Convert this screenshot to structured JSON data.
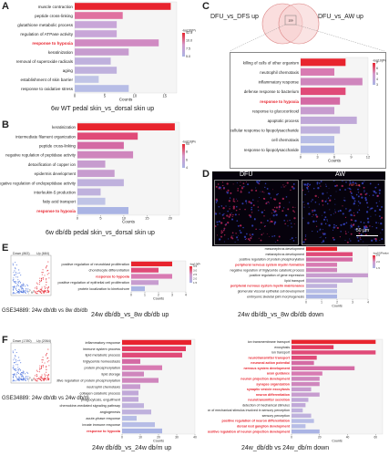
{
  "panels": {
    "A": {
      "letter": "A",
      "caption": "6w WT pedal skin_vs_dorsal skin up",
      "xlabel": "Counts",
      "legend_title": "-log10(Pvalue)",
      "legend_ticks": [
        "12.5",
        "10.0",
        "7.5",
        "5.0"
      ],
      "terms": [
        "muscle contraction",
        "peptide cross-linking",
        "glutathione metabolic process",
        "regulation of ATPase activity",
        "response to hypoxia",
        "keratinization",
        "removal of superoxide radicals",
        "aging",
        "establishment of skin barrier",
        "response to oxidative stress"
      ],
      "highlight": [
        4
      ],
      "values": [
        16,
        8,
        7,
        7,
        14,
        9,
        6,
        7,
        4,
        9
      ],
      "colors": [
        "#e8242e",
        "#e070a0",
        "#c8a6d8",
        "#c8a6d8",
        "#d08ac2",
        "#c79ccf",
        "#bfb1dd",
        "#bfb1dd",
        "#c0c4e6",
        "#b7bde6"
      ],
      "ticks": [
        "0",
        "5",
        "10",
        "15"
      ],
      "xmax": 17
    },
    "B": {
      "letter": "B",
      "caption": "6w db/db pedal skin_vs_dorsal skin up",
      "xlabel": "Counts",
      "legend_title": "-log10(Pvalue)",
      "legend_ticks": [
        "10",
        "8",
        "6",
        "4"
      ],
      "terms": [
        "keratinization",
        "intermediate filament organization",
        "peptide cross-linking",
        "negative regulation of peptidase activity",
        "detoxification of copper ion",
        "epidermis development",
        "negative regulation of endopeptidase activity",
        "interleukin-5 production",
        "fatty acid transport",
        "response to hypoxia"
      ],
      "highlight": [
        9
      ],
      "values": [
        21,
        13,
        10,
        12,
        6,
        8,
        10,
        5,
        6,
        11
      ],
      "colors": [
        "#e8242e",
        "#e04a78",
        "#d46aa4",
        "#cf86bd",
        "#c79ccf",
        "#c79ccf",
        "#bfb1dd",
        "#bfb1dd",
        "#c0c4e6",
        "#aab4e4"
      ],
      "ticks": [
        "0",
        "5",
        "10",
        "15",
        "20"
      ],
      "xmax": 22
    },
    "C": {
      "letter": "C",
      "venn_left": "DFU_vs_DFS up",
      "venn_right": "DFU_vs_AW up",
      "venn_center": "159",
      "xlabel": "Counts",
      "legend_title": "-log10(Pvalue)",
      "legend_ticks": [
        "7",
        "6",
        "5",
        "4",
        "3"
      ],
      "terms": [
        "killing of cells of other organism",
        "neutrophil chemotaxis",
        "inflammatory response",
        "defense response to bacterium",
        "response to hypoxia",
        "response to glucocorticoid",
        "apoptotic process",
        "cellular response to lipopolysaccharide",
        "cell chemotaxis",
        "response to lipopolysaccharide"
      ],
      "highlight": [
        4
      ],
      "values": [
        8,
        6,
        11,
        8,
        7,
        6,
        10,
        7,
        6,
        6
      ],
      "colors": [
        "#e8242e",
        "#d87ab2",
        "#cf86bd",
        "#e04a78",
        "#d46aa4",
        "#c79ccf",
        "#c0a8d8",
        "#bfb1dd",
        "#b7bde6",
        "#aab4e4"
      ],
      "ticks": [
        "0",
        "3",
        "6",
        "9",
        "12"
      ],
      "xmax": 12
    },
    "D": {
      "letter": "D",
      "label_left": "DFU",
      "label_right": "AW",
      "scale": "50 μm",
      "channel": "HIF-1α"
    },
    "E": {
      "letter": "E",
      "gse": "GSE34889: 24w db/db vs 8w db/db",
      "volcano_down": "Down (863)",
      "volcano_up": "Up (684)",
      "caption_up": "24w db/db_vs_8w db/db up",
      "caption_down": "24w db/db_vs_8w db/db down",
      "xlabel": "Counts",
      "legend_title": "-log10(Pvalue)",
      "up_legend_ticks": [
        "3.5",
        "3.0",
        "2.5",
        "2.0",
        "1.5"
      ],
      "up_terms": [
        "positive regulation of neuroblast proliferation",
        "chondrocyte differentiation",
        "response to hypoxia",
        "positive regulation of epithelial cell proliferation",
        "protein localization to kinetochore"
      ],
      "up_highlight": [
        2
      ],
      "up_values": [
        3,
        2,
        3,
        2,
        1
      ],
      "up_colors": [
        "#e8242e",
        "#e04a78",
        "#d87ab2",
        "#c79ccf",
        "#aab4e4"
      ],
      "up_ticks": [
        "0",
        "1",
        "2",
        "3",
        "4"
      ],
      "up_xmax": 4,
      "down_legend_ticks": [
        "2.5",
        "2.0",
        "1.5"
      ],
      "down_terms": [
        "mesonephros development",
        "metanephros development",
        "positive regulation of protein phosphorylation",
        "peripheral nervous system myelin formation",
        "negative regulation of triglyceride catabolic process",
        "positive regulation of gene expression",
        "lipid transport",
        "peripheral nervous system myelin maintenance",
        "glomerular visceral epithelial cell development",
        "embryonic skeletal joint morphogenesis"
      ],
      "down_highlight": [
        3,
        7
      ],
      "down_values": [
        2,
        3,
        3,
        2,
        2,
        4,
        3,
        2,
        2,
        2
      ],
      "down_colors": [
        "#e8242e",
        "#e04a78",
        "#d46aa4",
        "#d87ab2",
        "#cf86bd",
        "#c79ccf",
        "#c0a8d8",
        "#bfb1dd",
        "#b7bde6",
        "#aab4e4"
      ],
      "down_ticks": [
        "0",
        "1",
        "2",
        "3",
        "4"
      ],
      "down_xmax": 4
    },
    "F": {
      "letter": "F",
      "gse": "GSE34889: 24w db/db vs 24w db/m",
      "volcano_down": "Down (1780)",
      "volcano_up": "Up (2064)",
      "caption_up": "24w db/db_vs_24w db/m up",
      "caption_down": "24w_db/db vs 24w_db/m down",
      "xlabel": "Counts",
      "legend_title": "-log10(Pvalue)",
      "up_terms": [
        "inflammatory response",
        "immune system process",
        "lipid metabolic process",
        "triglyceride homeostasis",
        "protein phosphorylation",
        "lipid storage",
        "positive regulation of protein phosphorylation",
        "neutrophil chemotaxis",
        "collagen catabolic process",
        "phagocytosis, engulfment",
        "chemokine-mediated signaling pathway",
        "angiogenesis",
        "acute-phase response",
        "innate immune response",
        "response to hypoxia"
      ],
      "up_highlight": [
        14
      ],
      "up_values": [
        38,
        35,
        33,
        10,
        22,
        12,
        20,
        10,
        9,
        9,
        12,
        16,
        8,
        18,
        22
      ],
      "up_colors": [
        "#e8242e",
        "#e33a5e",
        "#e04a78",
        "#d46aa4",
        "#d87ab2",
        "#cf86bd",
        "#cf86bd",
        "#c79ccf",
        "#c0a8d8",
        "#c0a8d8",
        "#bfb1dd",
        "#bfb1dd",
        "#b7bde6",
        "#b7bde6",
        "#aab4e4"
      ],
      "up_ticks": [
        "0",
        "10",
        "20",
        "30",
        "40"
      ],
      "up_xmax": 40,
      "down_terms": [
        "ion transmembrane transport",
        "exocytosis",
        "ion transport",
        "neurotransmitter transport",
        "neuronal action potential",
        "nervous system development",
        "axon guidance",
        "neuron projection development",
        "synapse organization",
        "synaptic vesicle exocytosis",
        "neuron differentiation",
        "neurotransmitter secretion",
        "detection of mechanical stimulus",
        "detection of mechanical stimulus involved in sensory perception",
        "sensory perception",
        "positive regulation of neuron differentiation",
        "dorsal root ganglion development",
        "positive regulation of neuron projection development"
      ],
      "down_highlight": [
        3,
        4,
        5,
        6,
        7,
        8,
        9,
        10,
        11,
        15,
        16,
        17
      ],
      "down_values": [
        60,
        30,
        60,
        18,
        16,
        45,
        22,
        20,
        20,
        14,
        20,
        12,
        10,
        8,
        14,
        16,
        10,
        20
      ],
      "down_colors": [
        "#e8242e",
        "#e33a5e",
        "#e04a78",
        "#e04a78",
        "#d46aa4",
        "#d46aa4",
        "#d87ab2",
        "#cf86bd",
        "#cf86bd",
        "#c79ccf",
        "#c79ccf",
        "#c0a8d8",
        "#c0a8d8",
        "#bfb1dd",
        "#bfb1dd",
        "#b7bde6",
        "#b7bde6",
        "#aab4e4"
      ],
      "down_ticks": [
        "0",
        "20",
        "40",
        "60"
      ],
      "down_xmax": 65
    }
  }
}
